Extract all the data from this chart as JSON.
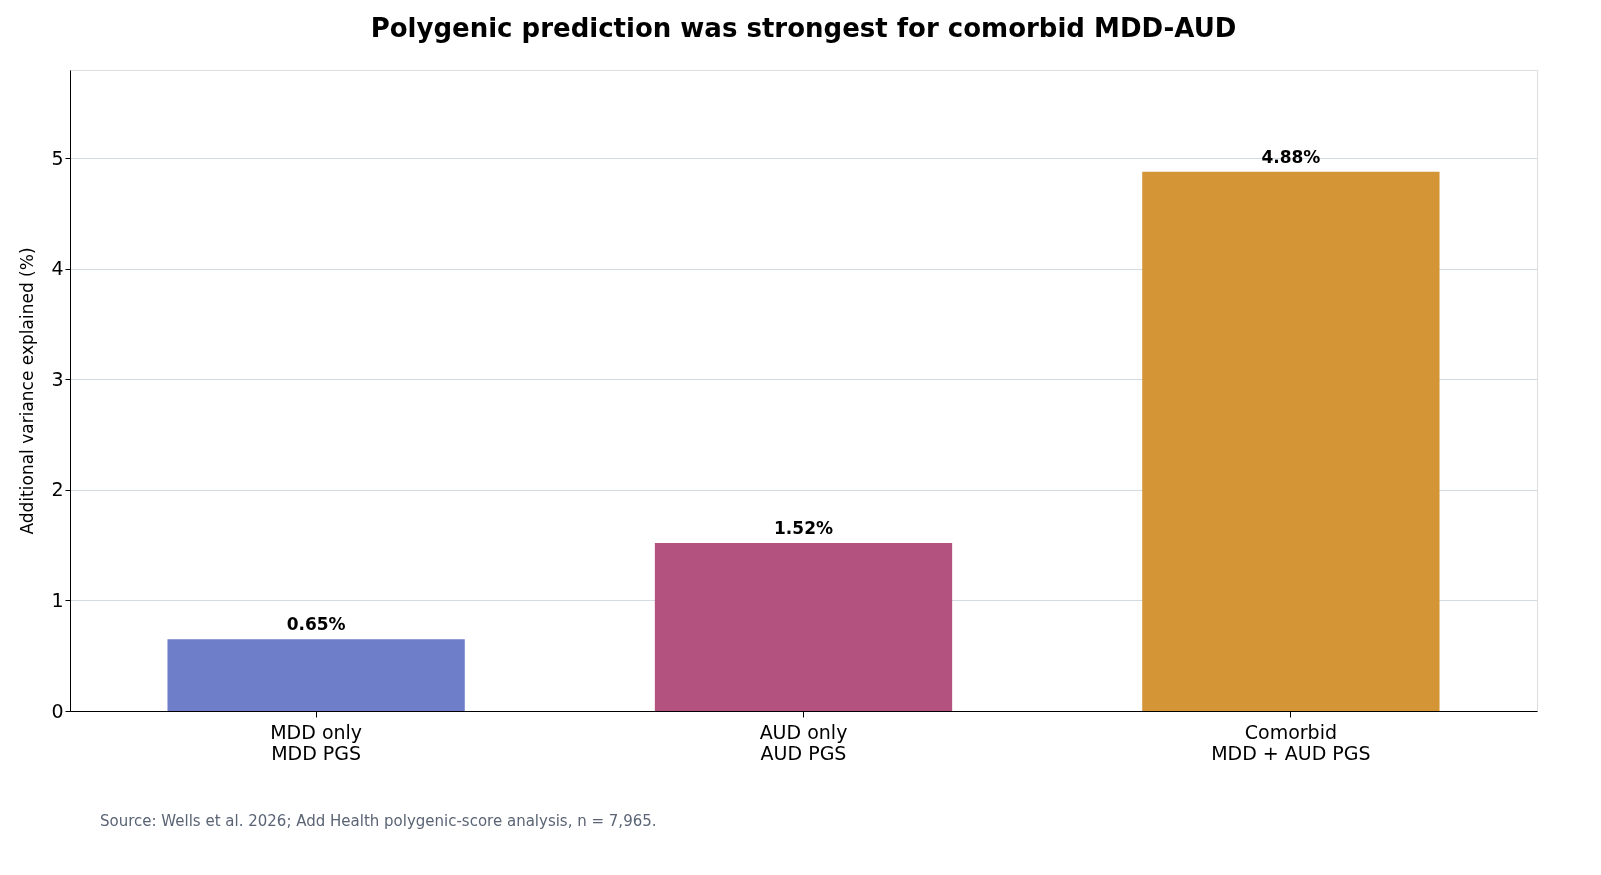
{
  "chart_data": {
    "type": "bar",
    "title": "Polygenic prediction was strongest for comorbid MDD-AUD",
    "ylabel": "Additional variance explained (%)",
    "categories": [
      "MDD only\nMDD PGS",
      "AUD only\nAUD PGS",
      "Comorbid\nMDD + AUD PGS"
    ],
    "values": [
      0.65,
      1.52,
      4.88
    ],
    "colors": [
      "#6f7ec8",
      "#b3527e",
      "#d39535"
    ],
    "value_labels": [
      "0.65%",
      "1.52%",
      "4.88%"
    ],
    "ylim": [
      0,
      5.8
    ],
    "yticks": [
      0,
      1,
      2,
      3,
      4,
      5
    ],
    "grid": "y",
    "legend": false,
    "annotations": [
      "Source: Wells et al. 2026; Add Health polygenic-score analysis, n = 7,965."
    ]
  }
}
